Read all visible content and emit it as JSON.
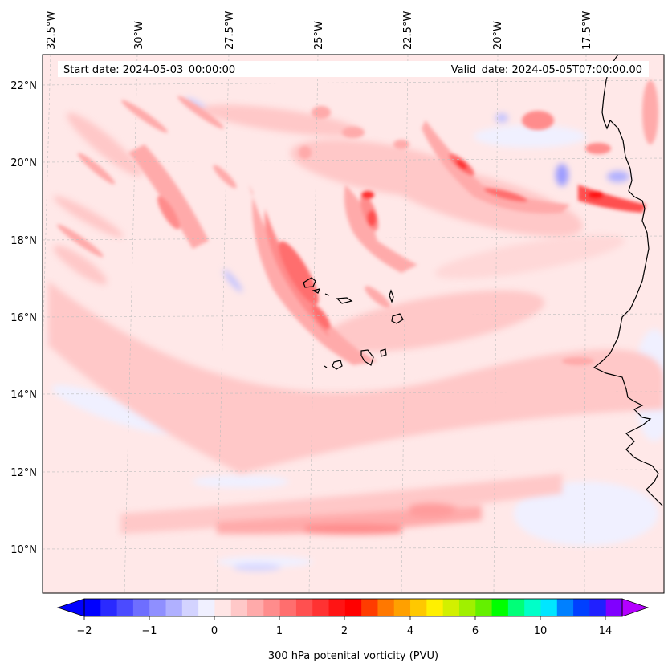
{
  "header": {
    "start_date": "Start date: 2024-05-03_00:00:00",
    "valid_date": "Valid_date: 2024-05-05T07:00:00.00"
  },
  "map": {
    "lon_labels": [
      "32.5°W",
      "30°W",
      "27.5°W",
      "25°W",
      "22.5°W",
      "20°W",
      "17.5°W"
    ],
    "lat_labels": [
      "22°N",
      "20°N",
      "18°N",
      "16°N",
      "14°N",
      "12°N",
      "10°N"
    ],
    "gridlines": "dashed-gray",
    "coastline_color": "#000000"
  },
  "colorbar": {
    "label": "300 hPa potenital vorticity (PVU)",
    "tick_labels": [
      "−2",
      "−1",
      "0",
      "1",
      "2",
      "4",
      "6",
      "10",
      "14"
    ],
    "colors": [
      "#0000ff",
      "#2a2aff",
      "#4b4bff",
      "#6e6eff",
      "#8f8fff",
      "#b0b0ff",
      "#d3d3ff",
      "#f0f0ff",
      "#ffe6e6",
      "#ffc8c8",
      "#ffaaaa",
      "#ff8c8c",
      "#ff6e6e",
      "#ff5050",
      "#ff3232",
      "#ff1414",
      "#ff0000",
      "#ff3c00",
      "#ff7800",
      "#ffa000",
      "#ffc800",
      "#fff000",
      "#d2f000",
      "#a0f000",
      "#64f000",
      "#00ff00",
      "#00ff78",
      "#00ffc8",
      "#00e6ff",
      "#0080ff",
      "#0040ff",
      "#2020ff",
      "#8000ff"
    ],
    "extend_min_color": "#0000ff",
    "extend_max_color": "#b400ff"
  }
}
